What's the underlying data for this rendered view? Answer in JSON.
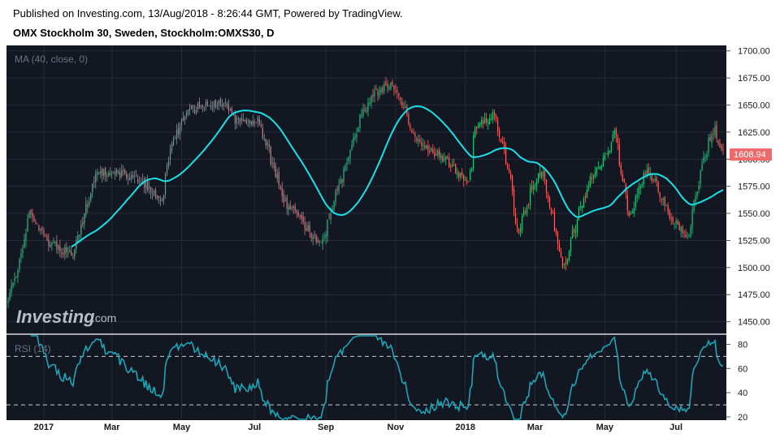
{
  "header": {
    "published": "Published on Investing.com, 13/Aug/2018 - 8:26:44 GMT, Powered by TradingView.",
    "instrument": "OMX Stockholm 30, Sweden, Stockholm:OMXS30, D"
  },
  "watermark": {
    "brand": "Investing",
    "suffix": ".com"
  },
  "colors": {
    "background": "#131722",
    "up": "#26c281",
    "down": "#ef6a6a",
    "ma": "#18e0e8",
    "rsi": "#1aa6b7",
    "grid": "#262b38",
    "dashed": "#c9cdd6"
  },
  "chart_data": [
    {
      "type": "candlestick",
      "legend": "MA (40, close, 0)",
      "ylim": [
        1440,
        1705
      ],
      "y_ticks": [
        "1700.00",
        "1675.00",
        "1650.00",
        "1625.00",
        "1600.00",
        "1575.00",
        "1550.00",
        "1525.00",
        "1500.00",
        "1475.00",
        "1450.00"
      ],
      "last_value": "1608.94",
      "x_labels": [
        "2017",
        "Mar",
        "May",
        "Jul",
        "Sep",
        "Nov",
        "2018",
        "Mar",
        "May",
        "Jul"
      ],
      "anchors_date": [
        "2016-12-01",
        "2016-12-07",
        "2016-12-20",
        "2017-01-05",
        "2017-01-26",
        "2017-02-15",
        "2017-03-01",
        "2017-03-24",
        "2017-04-13",
        "2017-04-20",
        "2017-05-04",
        "2017-05-20",
        "2017-06-07",
        "2017-06-16",
        "2017-07-06",
        "2017-07-17",
        "2017-07-28",
        "2017-08-11",
        "2017-08-24",
        "2017-08-29",
        "2017-09-06",
        "2017-09-20",
        "2017-10-03",
        "2017-10-13",
        "2017-10-27",
        "2017-11-09",
        "2017-11-15",
        "2017-11-30",
        "2017-12-15",
        "2018-01-03",
        "2018-01-09",
        "2018-01-24",
        "2018-02-02",
        "2018-02-07",
        "2018-02-15",
        "2018-02-26",
        "2018-03-08",
        "2018-03-16",
        "2018-03-26",
        "2018-04-04",
        "2018-04-20",
        "2018-05-03",
        "2018-05-09",
        "2018-05-22",
        "2018-06-04",
        "2018-06-13",
        "2018-06-26",
        "2018-07-11",
        "2018-07-24",
        "2018-08-03",
        "2018-08-10"
      ],
      "anchors_close": [
        1470,
        1488,
        1548,
        1523,
        1512,
        1585,
        1588,
        1582,
        1562,
        1608,
        1644,
        1650,
        1652,
        1635,
        1635,
        1598,
        1560,
        1545,
        1525,
        1525,
        1550,
        1600,
        1640,
        1660,
        1670,
        1648,
        1622,
        1610,
        1598,
        1578,
        1628,
        1642,
        1608,
        1588,
        1530,
        1572,
        1588,
        1548,
        1498,
        1535,
        1588,
        1605,
        1625,
        1545,
        1590,
        1578,
        1548,
        1528,
        1598,
        1628,
        1609
      ],
      "ma_period": 40
    },
    {
      "type": "line",
      "legend": "RSI (14)",
      "ylim": [
        18,
        87
      ],
      "y_ticks": [
        "80",
        "60",
        "40",
        "20"
      ],
      "bands": [
        70,
        30
      ],
      "period": 14
    }
  ]
}
